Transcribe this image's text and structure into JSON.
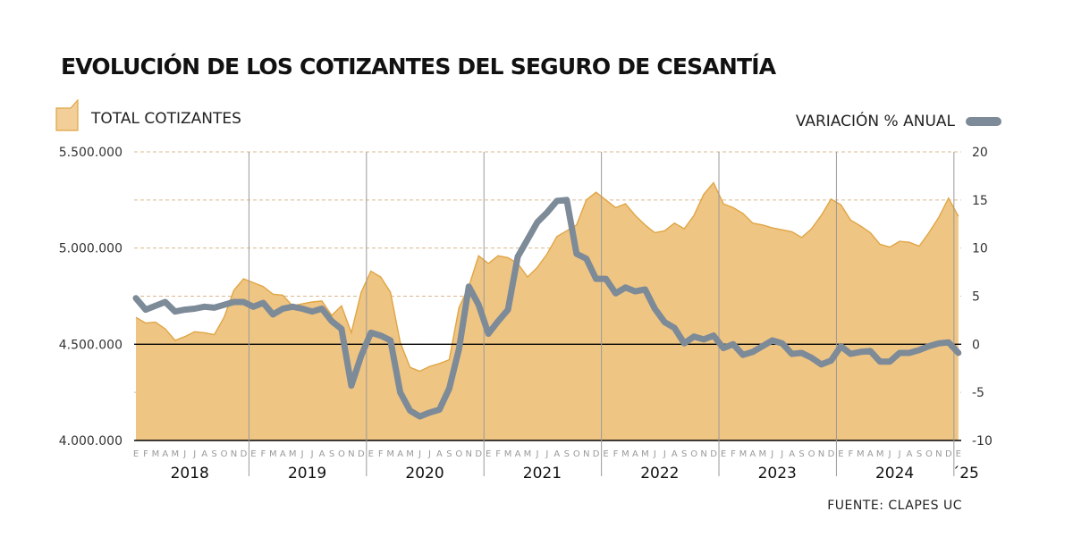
{
  "title": "EVOLUCIÓN DE LOS COTIZANTES DEL SEGURO DE CESANTÍA",
  "source": "FUENTE: CLAPES UC",
  "colors": {
    "area_fill": "#efc584",
    "area_line": "#e0a544",
    "line": "#7d8a98",
    "grid": "#d9b98f",
    "zero_line": "#000000",
    "year_sep": "#9a9a9a"
  },
  "chart_data": {
    "type": "area",
    "x_month_letters": [
      "E",
      "F",
      "M",
      "A",
      "M",
      "J",
      "J",
      "A",
      "S",
      "O",
      "N",
      "D"
    ],
    "x_year_labels": [
      "2018",
      "2019",
      "2020",
      "2021",
      "2022",
      "2023",
      "2024",
      "´25"
    ],
    "x_start": "2018-01",
    "x_end": "2025-01",
    "left_axis": {
      "ylim": [
        4000000,
        5500000
      ],
      "ticks": [
        "4.000.000",
        "4.500.000",
        "5.000.000",
        "5.500.000"
      ],
      "tick_values": [
        4000000,
        4500000,
        5000000,
        5500000
      ]
    },
    "right_axis": {
      "ylim": [
        -10,
        20
      ],
      "ticks": [
        "-10",
        "-5",
        "0",
        "5",
        "10",
        "15",
        "20"
      ],
      "tick_values": [
        -10,
        -5,
        0,
        5,
        10,
        15,
        20
      ]
    },
    "series": [
      {
        "name": "TOTAL COTIZANTES",
        "axis": "left",
        "kind": "area",
        "values": [
          4640000,
          4610000,
          4615000,
          4580000,
          4520000,
          4540000,
          4565000,
          4560000,
          4550000,
          4640000,
          4780000,
          4840000,
          4820000,
          4800000,
          4760000,
          4755000,
          4700000,
          4710000,
          4720000,
          4725000,
          4650000,
          4700000,
          4560000,
          4770000,
          4880000,
          4850000,
          4770000,
          4510000,
          4380000,
          4360000,
          4385000,
          4400000,
          4420000,
          4690000,
          4800000,
          4960000,
          4920000,
          4960000,
          4950000,
          4920000,
          4850000,
          4900000,
          4970000,
          5060000,
          5090000,
          5120000,
          5250000,
          5290000,
          5250000,
          5210000,
          5230000,
          5170000,
          5120000,
          5080000,
          5090000,
          5130000,
          5100000,
          5170000,
          5280000,
          5340000,
          5230000,
          5210000,
          5180000,
          5130000,
          5120000,
          5105000,
          5095000,
          5085000,
          5055000,
          5100000,
          5170000,
          5255000,
          5225000,
          5145000,
          5115000,
          5080000,
          5020000,
          5005000,
          5035000,
          5030000,
          5010000,
          5080000,
          5160000,
          5260000,
          5165000
        ]
      },
      {
        "name": "VARIACIÓN % ANUAL",
        "axis": "right",
        "kind": "line",
        "values": [
          4.8,
          3.6,
          4.0,
          4.4,
          3.4,
          3.6,
          3.7,
          3.9,
          3.8,
          4.1,
          4.4,
          4.4,
          3.9,
          4.3,
          3.1,
          3.7,
          3.9,
          3.7,
          3.4,
          3.7,
          2.4,
          1.6,
          -4.3,
          -1.2,
          1.2,
          0.9,
          0.4,
          -5.0,
          -6.9,
          -7.5,
          -7.1,
          -6.8,
          -4.6,
          -0.5,
          6.0,
          4.1,
          1.1,
          2.4,
          3.6,
          9.1,
          10.9,
          12.7,
          13.7,
          14.9,
          15.0,
          9.4,
          8.9,
          6.8,
          6.8,
          5.3,
          5.9,
          5.5,
          5.7,
          3.7,
          2.3,
          1.7,
          0.1,
          0.8,
          0.5,
          0.9,
          -0.4,
          0.0,
          -1.1,
          -0.8,
          -0.2,
          0.4,
          0.1,
          -1.0,
          -0.9,
          -1.4,
          -2.1,
          -1.7,
          -0.2,
          -1.0,
          -0.8,
          -0.7,
          -1.8,
          -1.8,
          -0.9,
          -0.9,
          -0.6,
          -0.2,
          0.1,
          0.2,
          -0.9
        ]
      }
    ],
    "grid": true,
    "legend": "top"
  }
}
